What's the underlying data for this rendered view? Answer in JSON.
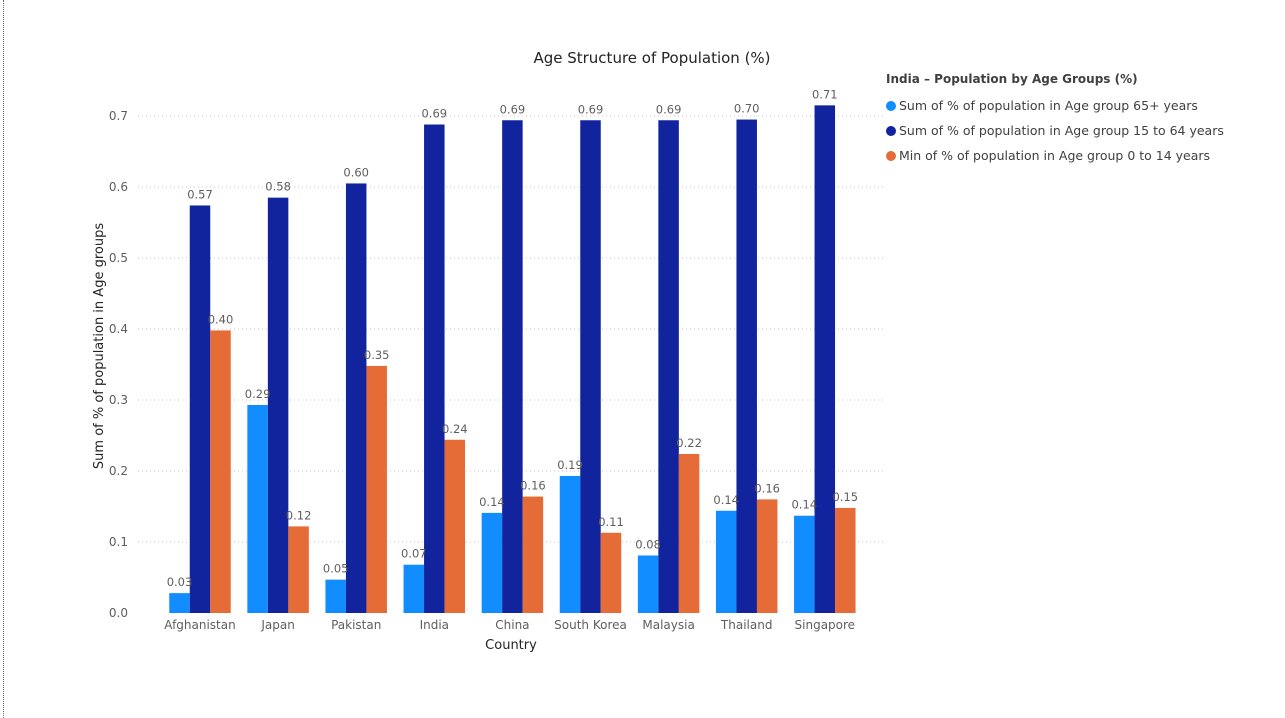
{
  "chart_data": {
    "type": "bar",
    "title": "Age Structure of Population (%)",
    "xlabel": "Country",
    "ylabel": "Sum of % of population in Age groups",
    "ylim": [
      0,
      0.7
    ],
    "yticks": [
      "0.0",
      "0.1",
      "0.2",
      "0.3",
      "0.4",
      "0.5",
      "0.6",
      "0.7"
    ],
    "grid": true,
    "legend_position": "top-right",
    "legend_title": "India – Population by Age Groups (%)",
    "categories": [
      "Afghanistan",
      "Japan",
      "Pakistan",
      "India",
      "China",
      "South Korea",
      "Malaysia",
      "Thailand",
      "Singapore"
    ],
    "series": [
      {
        "name": "Sum of % of population in Age group 65+ years",
        "color": "#118DFF",
        "values": [
          0.028,
          0.293,
          0.047,
          0.068,
          0.141,
          0.193,
          0.081,
          0.144,
          0.137
        ],
        "labels": [
          "0.03",
          "0.29",
          "0.05",
          "0.07",
          "0.14",
          "0.19",
          "0.08",
          "0.14",
          "0.14"
        ]
      },
      {
        "name": "Sum of % of population in Age group 15 to 64 years",
        "color": "#12239E",
        "values": [
          0.574,
          0.585,
          0.605,
          0.688,
          0.694,
          0.694,
          0.694,
          0.695,
          0.715
        ],
        "labels": [
          "0.57",
          "0.58",
          "0.60",
          "0.69",
          "0.69",
          "0.69",
          "0.69",
          "0.70",
          "0.71"
        ]
      },
      {
        "name": "Min of % of population in Age group 0 to 14 years",
        "color": "#E66C37",
        "values": [
          0.398,
          0.122,
          0.348,
          0.244,
          0.164,
          0.113,
          0.224,
          0.16,
          0.148
        ],
        "labels": [
          "0.40",
          "0.12",
          "0.35",
          "0.24",
          "0.16",
          "0.11",
          "0.22",
          "0.16",
          "0.15"
        ]
      }
    ]
  }
}
